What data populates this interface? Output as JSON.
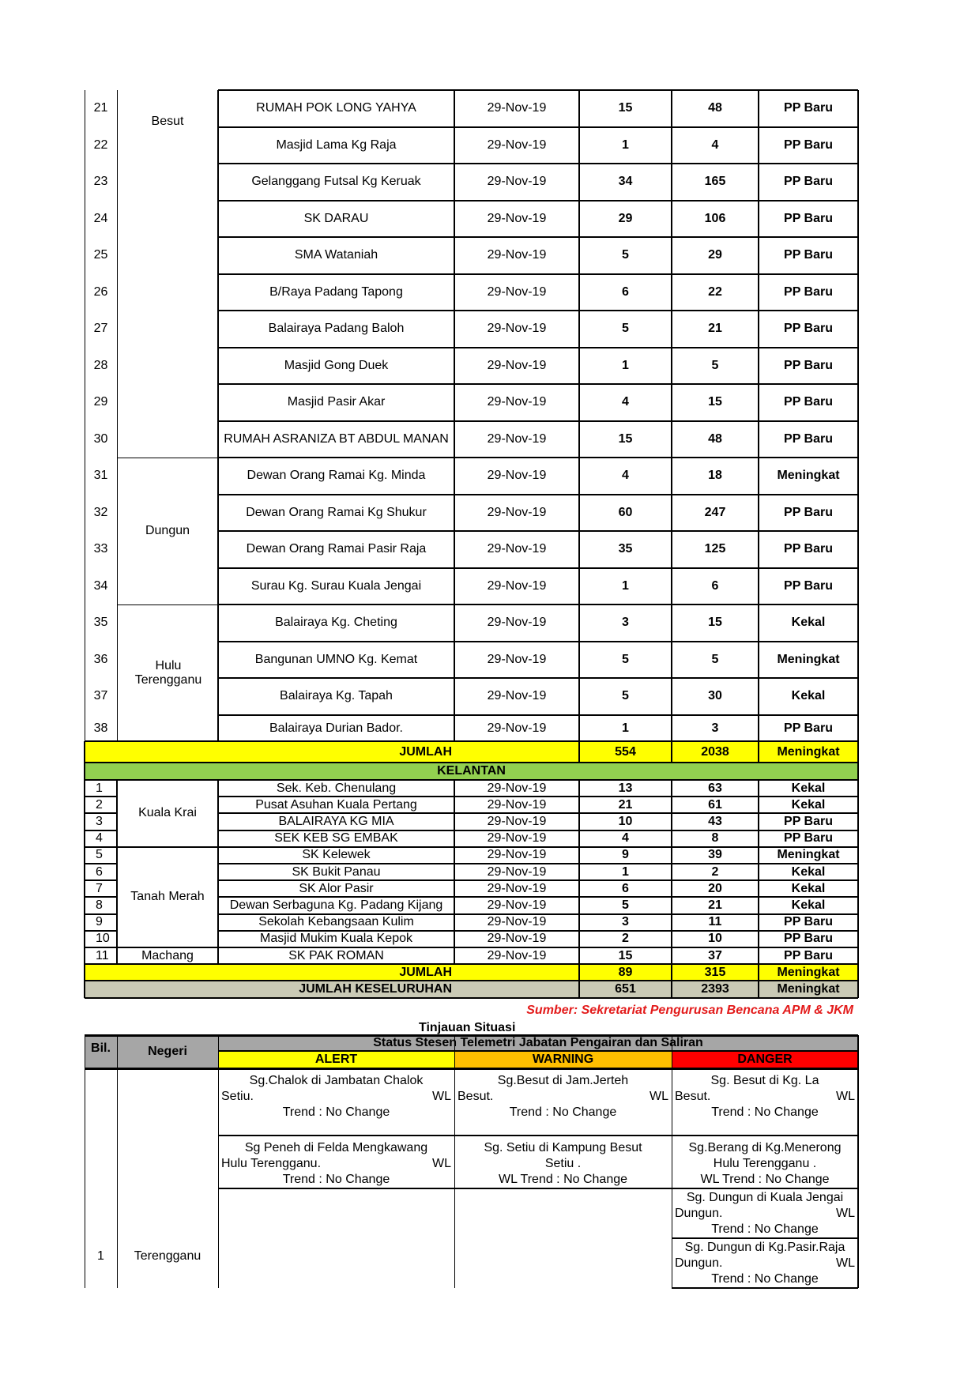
{
  "terengganu": {
    "rows": [
      {
        "no": "21",
        "name": "RUMAH POK LONG YAHYA",
        "date": "29-Nov-19",
        "families": "15",
        "victims": "48",
        "status": "PP Baru"
      },
      {
        "no": "22",
        "name": "Masjid Lama Kg Raja",
        "date": "29-Nov-19",
        "families": "1",
        "victims": "4",
        "status": "PP Baru"
      },
      {
        "no": "23",
        "name": "Gelanggang Futsal Kg Keruak",
        "date": "29-Nov-19",
        "families": "34",
        "victims": "165",
        "status": "PP Baru"
      },
      {
        "no": "24",
        "name": "SK DARAU",
        "date": "29-Nov-19",
        "families": "29",
        "victims": "106",
        "status": "PP Baru"
      },
      {
        "no": "25",
        "name": "SMA Wataniah",
        "date": "29-Nov-19",
        "families": "5",
        "victims": "29",
        "status": "PP Baru"
      },
      {
        "no": "26",
        "name": "B/Raya Padang Tapong",
        "date": "29-Nov-19",
        "families": "6",
        "victims": "22",
        "status": "PP Baru"
      },
      {
        "no": "27",
        "name": "Balairaya Padang Baloh",
        "date": "29-Nov-19",
        "families": "5",
        "victims": "21",
        "status": "PP Baru"
      },
      {
        "no": "28",
        "name": "Masjid Gong Duek",
        "date": "29-Nov-19",
        "families": "1",
        "victims": "5",
        "status": "PP Baru"
      },
      {
        "no": "29",
        "name": "Masjid Pasir Akar",
        "date": "29-Nov-19",
        "families": "4",
        "victims": "15",
        "status": "PP Baru"
      },
      {
        "no": "30",
        "name": "RUMAH ASRANIZA BT ABDUL MANAN",
        "date": "29-Nov-19",
        "families": "15",
        "victims": "48",
        "status": "PP Baru"
      },
      {
        "no": "31",
        "name": "Dewan Orang Ramai Kg. Minda",
        "date": "29-Nov-19",
        "families": "4",
        "victims": "18",
        "status": "Meningkat"
      },
      {
        "no": "32",
        "name": "Dewan Orang Ramai Kg Shukur",
        "date": "29-Nov-19",
        "families": "60",
        "victims": "247",
        "status": "PP Baru"
      },
      {
        "no": "33",
        "name": "Dewan Orang Ramai Pasir Raja",
        "date": "29-Nov-19",
        "families": "35",
        "victims": "125",
        "status": "PP Baru"
      },
      {
        "no": "34",
        "name": "Surau Kg. Surau Kuala Jengai",
        "date": "29-Nov-19",
        "families": "1",
        "victims": "6",
        "status": "PP Baru"
      },
      {
        "no": "35",
        "name": "Balairaya Kg. Cheting",
        "date": "29-Nov-19",
        "families": "3",
        "victims": "15",
        "status": "Kekal"
      },
      {
        "no": "36",
        "name": "Bangunan UMNO Kg. Kemat",
        "date": "29-Nov-19",
        "families": "5",
        "victims": "5",
        "status": "Meningkat"
      },
      {
        "no": "37",
        "name": "Balairaya Kg. Tapah",
        "date": "29-Nov-19",
        "families": "5",
        "victims": "30",
        "status": "Kekal"
      },
      {
        "no": "38",
        "name": "Balairaya Durian Bador.",
        "date": "29-Nov-19",
        "families": "1",
        "victims": "3",
        "status": "PP Baru"
      }
    ],
    "districts": [
      {
        "name": "Besut"
      },
      {
        "name": "Dungun"
      },
      {
        "name": "Hulu Terengganu"
      }
    ],
    "total": {
      "label": "JUMLAH",
      "families": "554",
      "victims": "2038",
      "status": "Meningkat"
    }
  },
  "kelantan": {
    "title": "KELANTAN",
    "rows": [
      {
        "no": "1",
        "name": "Sek. Keb. Chenulang",
        "date": "29-Nov-19",
        "families": "13",
        "victims": "63",
        "status": "Kekal"
      },
      {
        "no": "2",
        "name": "Pusat Asuhan Kuala Pertang",
        "date": "29-Nov-19",
        "families": "21",
        "victims": "61",
        "status": "Kekal"
      },
      {
        "no": "3",
        "name": "BALAIRAYA KG MIA",
        "date": "29-Nov-19",
        "families": "10",
        "victims": "43",
        "status": "PP Baru"
      },
      {
        "no": "4",
        "name": "SEK KEB SG EMBAK",
        "date": "29-Nov-19",
        "families": "4",
        "victims": "8",
        "status": "PP Baru"
      },
      {
        "no": "5",
        "name": "SK Kelewek",
        "date": "29-Nov-19",
        "families": "9",
        "victims": "39",
        "status": "Meningkat"
      },
      {
        "no": "6",
        "name": "SK Bukit Panau",
        "date": "29-Nov-19",
        "families": "1",
        "victims": "2",
        "status": "Kekal"
      },
      {
        "no": "7",
        "name": "SK Alor Pasir",
        "date": "29-Nov-19",
        "families": "6",
        "victims": "20",
        "status": "Kekal"
      },
      {
        "no": "8",
        "name": "Dewan Serbaguna Kg. Padang Kijang",
        "date": "29-Nov-19",
        "families": "5",
        "victims": "21",
        "status": "Kekal"
      },
      {
        "no": "9",
        "name": "Sekolah Kebangsaan Kulim",
        "date": "29-Nov-19",
        "families": "3",
        "victims": "11",
        "status": "PP Baru"
      },
      {
        "no": "10",
        "name": "Masjid Mukim Kuala Kepok",
        "date": "29-Nov-19",
        "families": "2",
        "victims": "10",
        "status": "PP Baru"
      },
      {
        "no": "11",
        "name": "SK PAK ROMAN",
        "date": "29-Nov-19",
        "families": "15",
        "victims": "37",
        "status": "PP Baru"
      }
    ],
    "districts": [
      {
        "name": "Kuala Krai"
      },
      {
        "name": "Tanah Merah"
      },
      {
        "name": "Machang"
      }
    ],
    "total": {
      "label": "JUMLAH",
      "families": "89",
      "victims": "315",
      "status": "Meningkat"
    }
  },
  "grand_total": {
    "label": "JUMLAH KESELURUHAN",
    "families": "651",
    "victims": "2393",
    "status": "Meningkat"
  },
  "source": "Sumber: Sekretariat Pengurusan Bencana APM & JKM",
  "situation": {
    "title": "Tinjauan Situasi",
    "headers": {
      "bil": "Bil.",
      "negeri": "Negeri",
      "status_title": "Status Stesen Telemetri Jabatan Pengairan dan Saliran",
      "alert": "ALERT",
      "warning": "WARNING",
      "danger": "DANGER"
    },
    "row": {
      "bil": "1",
      "negeri": "Terengganu"
    },
    "alert": [
      {
        "l1": "Sg.Chalok di Jambatan Chalok",
        "l2a": "Setiu.",
        "l2b": "WL",
        "l3": "Trend : No Change"
      },
      {
        "l1": "Sg Peneh di Felda Mengkawang",
        "l2a": "Hulu Terengganu.",
        "l2b": "WL",
        "l3": "Trend : No Change"
      }
    ],
    "warning": [
      {
        "l1": "Sg.Besut di Jam.Jerteh",
        "l2a": "Besut.",
        "l2b": "WL",
        "l3": "Trend : No Change"
      },
      {
        "l1": "Sg. Setiu di Kampung Besut",
        "l2": "Setiu .",
        "l3": "WL Trend : No Change"
      }
    ],
    "danger": [
      {
        "l1": "Sg. Besut di Kg. La",
        "l2a": "Besut.",
        "l2b": "WL",
        "l3": "Trend : No Change"
      },
      {
        "l1": "Sg.Berang di Kg.Menerong",
        "l2": "Hulu Terengganu .",
        "l3": "WL Trend : No Change"
      },
      {
        "l1": "Sg. Dungun di Kuala Jengai",
        "l2a": "Dungun.",
        "l2b": "WL",
        "l3": "Trend : No Change"
      },
      {
        "l1": "Sg. Dungun di Kg.Pasir.Raja",
        "l2a": "Dungun.",
        "l2b": "WL",
        "l3": "Trend : No Change"
      }
    ],
    "colors": {
      "header": "#a6a6a6",
      "alert": "#ffff00",
      "warning": "#ffc000",
      "danger": "#ff0000"
    }
  },
  "colors": {
    "total": "#ffff00",
    "state": "#92d050",
    "grand_total": "#c9c9b5",
    "source": "#e31b1b"
  }
}
